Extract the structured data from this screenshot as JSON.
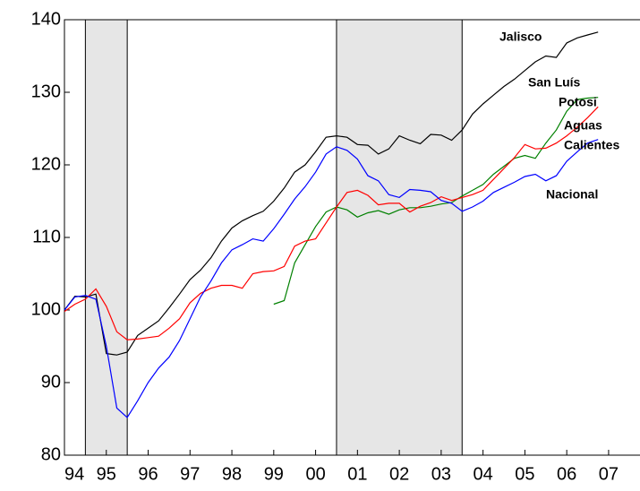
{
  "chart_data": {
    "type": "line",
    "x": [
      1994,
      1994.25,
      1994.5,
      1994.75,
      1995,
      1995.25,
      1995.5,
      1995.75,
      1996,
      1996.25,
      1996.5,
      1996.75,
      1997,
      1997.25,
      1997.5,
      1997.75,
      1998,
      1998.25,
      1998.5,
      1998.75,
      1999,
      1999.25,
      1999.5,
      1999.75,
      2000,
      2000.25,
      2000.5,
      2000.75,
      2001,
      2001.25,
      2001.5,
      2001.75,
      2002,
      2002.25,
      2002.5,
      2002.75,
      2003,
      2003.25,
      2003.5,
      2003.75,
      2004,
      2004.25,
      2004.5,
      2004.75,
      2005,
      2005.25,
      2005.5,
      2005.75,
      2006,
      2006.25,
      2006.5,
      2006.75
    ],
    "series": [
      {
        "color": "#000000",
        "values": [
          100,
          101.9,
          101.8,
          102.2,
          94.0,
          93.8,
          94.2,
          96.5,
          97.5,
          98.5,
          100.3,
          102.2,
          104.2,
          105.5,
          107.2,
          109.5,
          111.3,
          112.3,
          113.0,
          113.6,
          115.0,
          116.8,
          119.0,
          120.0,
          121.8,
          123.8,
          124.0,
          123.8,
          122.8,
          122.7,
          121.5,
          122.2,
          124.0,
          123.4,
          122.9,
          124.2,
          124.1,
          123.4,
          124.8,
          127.0,
          128.4,
          129.6,
          130.8,
          131.8,
          133.0,
          134.2,
          135.0,
          134.8,
          136.8,
          137.5,
          137.9,
          138.3
        ]
      },
      {
        "color": "#008000",
        "values": [
          null,
          null,
          null,
          null,
          null,
          null,
          null,
          null,
          null,
          null,
          null,
          null,
          null,
          null,
          null,
          null,
          null,
          null,
          null,
          null,
          100.8,
          101.3,
          106.5,
          109.0,
          111.5,
          113.5,
          114.2,
          113.8,
          112.8,
          113.4,
          113.7,
          113.2,
          113.8,
          114.1,
          114.1,
          114.3,
          114.6,
          114.8,
          115.7,
          116.5,
          117.3,
          118.7,
          119.8,
          120.9,
          121.3,
          120.9,
          123.0,
          124.8,
          127.4,
          129.0,
          129.2,
          129.3
        ]
      },
      {
        "color": "#ff0000",
        "values": [
          99.8,
          100.8,
          101.5,
          102.9,
          100.5,
          97.0,
          95.9,
          96.0,
          96.2,
          96.4,
          97.5,
          98.8,
          101.0,
          102.3,
          103.0,
          103.4,
          103.4,
          103.0,
          105.0,
          105.3,
          105.4,
          106.0,
          108.8,
          109.5,
          109.8,
          112.0,
          114.2,
          116.2,
          116.5,
          115.8,
          114.5,
          114.7,
          114.7,
          113.5,
          114.3,
          114.8,
          115.6,
          115.1,
          115.5,
          115.9,
          116.5,
          118.0,
          119.5,
          121.0,
          122.8,
          122.2,
          122.3,
          123.0,
          124.0,
          125.2,
          126.5,
          128.0
        ]
      },
      {
        "color": "#0000ff",
        "values": [
          100,
          101.8,
          102.0,
          101.5,
          95.0,
          86.5,
          85.2,
          87.5,
          90.0,
          92.0,
          93.5,
          95.8,
          98.8,
          101.8,
          104.0,
          106.5,
          108.3,
          109.0,
          109.8,
          109.5,
          111.2,
          113.2,
          115.3,
          117.0,
          119.0,
          121.5,
          122.5,
          122.0,
          120.8,
          118.5,
          117.8,
          115.9,
          115.5,
          116.6,
          116.5,
          116.3,
          115.1,
          114.7,
          113.6,
          114.2,
          115.0,
          116.2,
          116.9,
          117.6,
          118.4,
          118.7,
          117.8,
          118.5,
          120.5,
          121.8,
          123.0,
          123.5
        ]
      }
    ],
    "annotations": [
      "Jalisco",
      "San Luís",
      "Potosi",
      "Aguas",
      "Calientes",
      "Nacional"
    ],
    "shaded": [
      [
        1994.5,
        1995.5
      ],
      [
        2000.5,
        2003.5
      ]
    ],
    "shade_color": "#e6e6e6",
    "xlim": [
      1994,
      2007.75
    ],
    "xticks": [
      {
        "value": 1994,
        "label": "94"
      },
      {
        "value": 1995,
        "label": "95"
      },
      {
        "value": 1996,
        "label": "96"
      },
      {
        "value": 1997,
        "label": "97"
      },
      {
        "value": 1998,
        "label": "98"
      },
      {
        "value": 1999,
        "label": "99"
      },
      {
        "value": 2000,
        "label": "00"
      },
      {
        "value": 2001,
        "label": "01"
      },
      {
        "value": 2002,
        "label": "02"
      },
      {
        "value": 2003,
        "label": "03"
      },
      {
        "value": 2004,
        "label": "04"
      },
      {
        "value": 2005,
        "label": "05"
      },
      {
        "value": 2006,
        "label": "06"
      },
      {
        "value": 2007,
        "label": "07"
      }
    ],
    "ylim": [
      80,
      140
    ],
    "yticks": [
      80,
      90,
      100,
      110,
      120,
      130,
      140
    ]
  }
}
